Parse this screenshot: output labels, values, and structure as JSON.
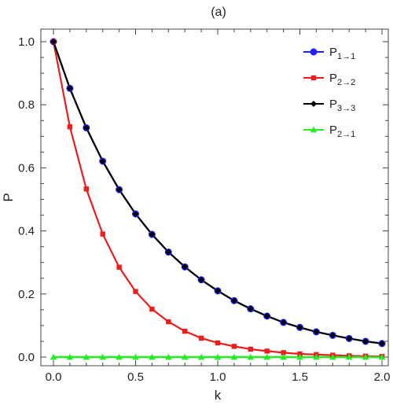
{
  "chart_data": {
    "type": "line",
    "title": "(a)",
    "xlabel": "k",
    "ylabel": "P",
    "xlim": [
      0,
      2.0
    ],
    "ylim": [
      0,
      1.0
    ],
    "x_ticks": [
      "0.0",
      "0.5",
      "1.0",
      "1.5",
      "2.0"
    ],
    "y_ticks": [
      "0.0",
      "0.2",
      "0.4",
      "0.6",
      "0.8",
      "1.0"
    ],
    "grid": false,
    "legend_position": "top-right",
    "x": [
      0.0,
      0.1,
      0.2,
      0.3,
      0.4,
      0.5,
      0.6,
      0.7,
      0.8,
      0.9,
      1.0,
      1.1,
      1.2,
      1.3,
      1.4,
      1.5,
      1.6,
      1.7,
      1.8,
      1.9,
      2.0
    ],
    "series": [
      {
        "name": "P1→1",
        "legend_main": "P",
        "legend_sub": "1→1",
        "color": "#1f1fff",
        "marker": "circle",
        "values": [
          1.0,
          0.852,
          0.727,
          0.621,
          0.531,
          0.454,
          0.389,
          0.333,
          0.286,
          0.245,
          0.21,
          0.179,
          0.153,
          0.13,
          0.11,
          0.094,
          0.08,
          0.069,
          0.059,
          0.05,
          0.043
        ]
      },
      {
        "name": "P2→2",
        "legend_main": "P",
        "legend_sub": "2→2",
        "color": "#ee1c1c",
        "marker": "square",
        "values": [
          1.0,
          0.73,
          0.533,
          0.39,
          0.285,
          0.208,
          0.152,
          0.112,
          0.082,
          0.06,
          0.045,
          0.034,
          0.025,
          0.019,
          0.014,
          0.01,
          0.008,
          0.006,
          0.004,
          0.003,
          0.002
        ]
      },
      {
        "name": "P3→3",
        "legend_main": "P",
        "legend_sub": "3→3",
        "color": "#000000",
        "marker": "diamond",
        "values": [
          1.0,
          0.852,
          0.727,
          0.621,
          0.531,
          0.454,
          0.389,
          0.333,
          0.286,
          0.245,
          0.21,
          0.179,
          0.153,
          0.13,
          0.11,
          0.094,
          0.08,
          0.069,
          0.059,
          0.05,
          0.043
        ]
      },
      {
        "name": "P2→1",
        "legend_main": "P",
        "legend_sub": "2→1",
        "color": "#22ee22",
        "marker": "triangle",
        "values": [
          0.0,
          0.0,
          0.0,
          0.0,
          0.0,
          0.0,
          0.0,
          0.0,
          0.0,
          0.0,
          0.0,
          0.0,
          0.0,
          0.0,
          0.0,
          0.0,
          0.0,
          0.0,
          0.0,
          0.0,
          0.0
        ]
      }
    ]
  }
}
